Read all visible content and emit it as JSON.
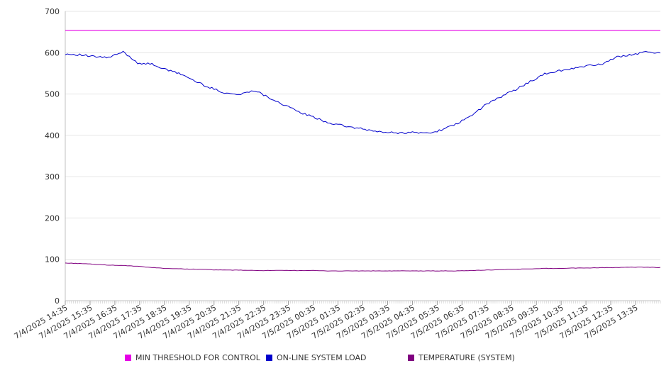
{
  "chart_data": {
    "type": "line",
    "title": "",
    "xlabel": "",
    "ylabel": "",
    "ylim": [
      0,
      700
    ],
    "y_ticks": [
      0,
      100,
      200,
      300,
      400,
      500,
      600,
      700
    ],
    "grid": true,
    "legend_position": "bottom",
    "x_tick_labels": [
      "7/4/2025 14:35",
      "7/4/2025 15:35",
      "7/4/2025 16:35",
      "7/4/2025 17:35",
      "7/4/2025 18:35",
      "7/4/2025 19:35",
      "7/4/2025 20:35",
      "7/4/2025 21:35",
      "7/4/2025 22:35",
      "7/4/2025 23:35",
      "7/5/2025 00:35",
      "7/5/2025 01:35",
      "7/5/2025 02:35",
      "7/5/2025 03:35",
      "7/5/2025 04:35",
      "7/5/2025 05:35",
      "7/5/2025 06:35",
      "7/5/2025 07:35",
      "7/5/2025 08:35",
      "7/5/2025 09:35",
      "7/5/2025 10:35",
      "7/5/2025 11:35",
      "7/5/2025 12:35",
      "7/5/2025 13:35"
    ],
    "x_start": "7/4/2025 14:35",
    "x_end": "7/5/2025 14:35",
    "sample_interval_minutes": 5,
    "series": [
      {
        "name": "MIN THRESHOLD FOR CONTROL",
        "color": "#e600e6",
        "hourly_values": [
          654,
          654,
          654,
          654,
          654,
          654,
          654,
          654,
          654,
          654,
          654,
          654,
          654,
          654,
          654,
          654,
          654,
          654,
          654,
          654,
          654,
          654,
          654,
          654,
          654
        ]
      },
      {
        "name": "ON-LINE SYSTEM LOAD",
        "color": "#0000cc",
        "hourly_values": [
          597,
          595,
          590,
          588,
          602,
          575,
          572,
          558,
          548,
          530,
          515,
          503,
          498,
          510,
          492,
          475,
          458,
          445,
          432,
          424,
          418,
          412,
          407,
          406,
          407,
          405,
          414,
          428,
          448,
          475,
          493,
          510,
          530,
          548,
          556,
          562,
          568,
          573,
          589,
          596,
          601,
          600
        ]
      },
      {
        "name": "TEMPERATURE (SYSTEM)",
        "color": "#800080",
        "hourly_values": [
          91,
          90,
          88,
          86,
          85,
          83,
          80,
          78,
          77,
          76,
          75,
          74,
          74,
          73,
          73,
          73,
          73,
          73,
          72,
          72,
          72,
          72,
          72,
          72,
          72,
          72,
          72,
          72,
          73,
          74,
          75,
          76,
          77,
          78,
          78,
          79,
          79,
          80,
          80,
          81,
          81,
          80
        ]
      }
    ]
  }
}
